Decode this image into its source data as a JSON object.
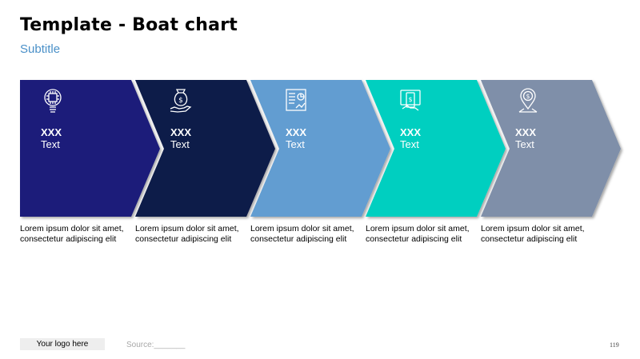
{
  "header": {
    "title": "Template - Boat chart",
    "subtitle": "Subtitle"
  },
  "steps": [
    {
      "heading": "XXX",
      "text": "Text",
      "color": "#1a1f7a",
      "icon": "lightbulb-chip-icon",
      "description": "Lorem ipsum dolor sit amet, consectetur adipiscing elit"
    },
    {
      "heading": "XXX",
      "text": "Text",
      "color": "#0c1a4a",
      "icon": "money-bag-hand-icon",
      "description": "Lorem ipsum dolor sit amet, consectetur adipiscing elit"
    },
    {
      "heading": "XXX",
      "text": "Text",
      "color": "#629dd1",
      "icon": "report-document-icon",
      "description": "Lorem ipsum dolor sit amet, consectetur adipiscing elit"
    },
    {
      "heading": "XXX",
      "text": "Text",
      "color": "#00cfc0",
      "icon": "mobile-payment-icon",
      "description": "Lorem ipsum dolor sit amet, consectetur adipiscing elit"
    },
    {
      "heading": "XXX",
      "text": "Text",
      "color": "#7f8fa9",
      "icon": "dollar-location-pin-icon",
      "description": "Lorem ipsum dolor sit amet, consectetur adipiscing elit"
    }
  ],
  "footer": {
    "logo": "Your logo here",
    "source": "Source:_______",
    "page_number": "119"
  }
}
